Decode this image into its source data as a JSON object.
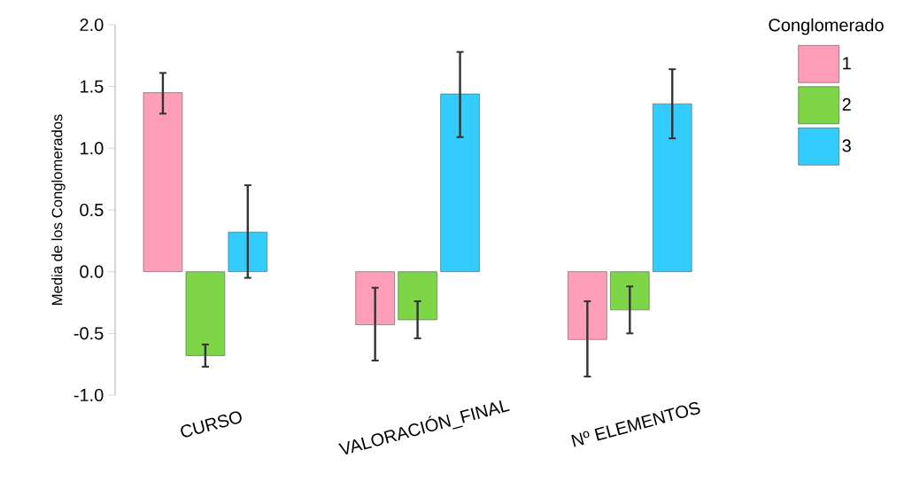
{
  "chart_data": {
    "type": "bar",
    "ylabel": "Media de los Conglomerados",
    "legend_title": "Conglomerado",
    "categories": [
      "CURSO",
      "VALORACIÓN_FINAL",
      "Nº ELEMENTOS"
    ],
    "series": [
      {
        "name": "1",
        "color": "#ff9eb8",
        "values": [
          1.45,
          -0.43,
          -0.55
        ],
        "errors": [
          [
            1.28,
            1.61
          ],
          [
            -0.72,
            -0.13
          ],
          [
            -0.85,
            -0.24
          ]
        ]
      },
      {
        "name": "2",
        "color": "#7fd548",
        "values": [
          -0.68,
          -0.39,
          -0.31
        ],
        "errors": [
          [
            -0.77,
            -0.59
          ],
          [
            -0.54,
            -0.24
          ],
          [
            -0.5,
            -0.12
          ]
        ]
      },
      {
        "name": "3",
        "color": "#33ccff",
        "values": [
          0.32,
          1.44,
          1.36
        ],
        "errors": [
          [
            -0.05,
            0.7
          ],
          [
            1.09,
            1.78
          ],
          [
            1.08,
            1.64
          ]
        ]
      }
    ],
    "ylim": [
      -1.0,
      2.0
    ],
    "yticks": [
      {
        "value": -1.0,
        "label": "-1.0"
      },
      {
        "value": -0.5,
        "label": "-0.5"
      },
      {
        "value": 0.0,
        "label": "0.0"
      },
      {
        "value": 0.5,
        "label": "0.5"
      },
      {
        "value": 1.0,
        "label": "1.0"
      },
      {
        "value": 1.5,
        "label": "1.5"
      },
      {
        "value": 2.0,
        "label": "2.0"
      }
    ],
    "legend": "top right",
    "grid": false
  }
}
